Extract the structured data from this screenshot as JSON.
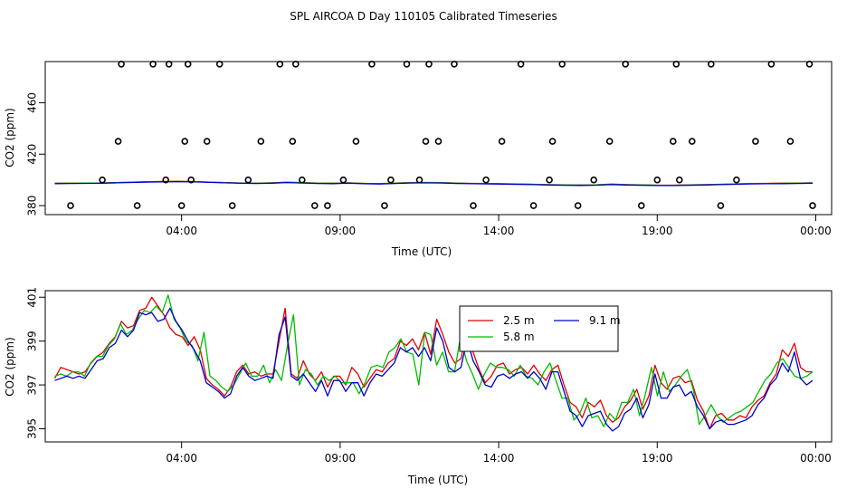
{
  "title": "SPL AIRCOA D  Day 110105  Calibrated Timeseries",
  "colors": {
    "s1": "#e00000",
    "s2": "#00bb00",
    "s3": "#0000cc",
    "marker": "#000000"
  },
  "chart_data": [
    {
      "type": "line+scatter",
      "xlabel": "Time (UTC)",
      "ylabel": "CO2 (ppm)",
      "x_unit": "hours since 00:00 UTC",
      "xlim": [
        -0.3,
        24.5
      ],
      "ylim": [
        373,
        492
      ],
      "xticks": [
        4,
        9,
        14,
        19,
        24
      ],
      "xtick_labels": [
        "04:00",
        "09:00",
        "14:00",
        "19:00",
        "00:00"
      ],
      "yticks": [
        380,
        420,
        460
      ],
      "ytick_labels": [
        "380",
        "420",
        "460"
      ],
      "series": [
        {
          "values": [
            397.4,
            397.4,
            397.5,
            397.6,
            397.9,
            398.3,
            398.6,
            398.8,
            398.9,
            398.7,
            398.3,
            397.9,
            397.6,
            397.4,
            397.7,
            398.2,
            397.9,
            397.5,
            397.4,
            397.7,
            397.3,
            397.1,
            397.5,
            397.9,
            398.0,
            397.9,
            397.5,
            397.3,
            397.2,
            397.0,
            396.8,
            396.6,
            396.3,
            396.1,
            396.0,
            396.2,
            396.7,
            396.3,
            396.1,
            395.9,
            395.9,
            396.1,
            396.3,
            396.6,
            396.9,
            397.2,
            397.3,
            397.4,
            397.5,
            397.7
          ]
        },
        {
          "values": [
            397.3,
            397.4,
            397.5,
            397.6,
            397.9,
            398.2,
            398.5,
            398.7,
            398.8,
            398.6,
            398.3,
            397.9,
            397.6,
            397.4,
            397.6,
            398.1,
            397.8,
            397.4,
            397.3,
            397.6,
            397.2,
            397.0,
            397.4,
            397.8,
            397.9,
            397.8,
            397.4,
            397.2,
            397.1,
            396.9,
            396.7,
            396.5,
            396.2,
            396.0,
            395.9,
            396.1,
            396.6,
            396.2,
            396.0,
            395.8,
            395.8,
            396.0,
            396.2,
            396.5,
            396.8,
            397.1,
            397.2,
            397.3,
            397.4,
            397.6
          ]
        },
        {
          "values": [
            397.1,
            397.2,
            397.3,
            397.4,
            397.7,
            398.0,
            398.3,
            398.5,
            398.6,
            398.4,
            398.1,
            397.7,
            397.4,
            397.2,
            397.4,
            397.9,
            397.6,
            397.2,
            397.1,
            397.4,
            397.0,
            396.8,
            397.2,
            397.6,
            397.7,
            397.6,
            397.2,
            397.0,
            396.9,
            396.7,
            396.5,
            396.3,
            396.0,
            395.8,
            395.7,
            395.9,
            396.4,
            396.0,
            395.8,
            395.6,
            395.6,
            395.8,
            396.0,
            396.3,
            396.6,
            396.9,
            397.0,
            397.1,
            397.2,
            397.4
          ]
        }
      ],
      "markers_x": [
        0.5,
        1.5,
        2.0,
        2.1,
        2.6,
        3.1,
        3.5,
        3.6,
        4.0,
        4.1,
        4.2,
        4.3,
        4.8,
        5.2,
        5.6,
        6.1,
        6.5,
        7.1,
        7.5,
        7.6,
        7.8,
        8.2,
        8.6,
        9.1,
        9.5,
        10.0,
        10.4,
        10.6,
        11.1,
        11.5,
        11.7,
        11.8,
        12.1,
        12.6,
        13.2,
        13.6,
        14.1,
        14.7,
        15.1,
        15.6,
        15.7,
        16.0,
        16.5,
        17.0,
        17.5,
        18.0,
        18.5,
        19.0,
        19.5,
        19.6,
        19.7,
        20.1,
        20.7,
        21.0,
        21.5,
        22.1,
        22.6,
        23.2,
        23.8,
        23.9
      ],
      "markers_y": [
        380,
        400,
        430,
        490,
        380,
        490,
        400,
        490,
        380,
        430,
        490,
        400,
        430,
        490,
        380,
        400,
        430,
        490,
        430,
        490,
        400,
        380,
        380,
        400,
        430,
        490,
        380,
        400,
        490,
        400,
        430,
        490,
        430,
        490,
        380,
        400,
        430,
        490,
        380,
        400,
        430,
        490,
        380,
        400,
        430,
        490,
        380,
        400,
        430,
        490,
        400,
        430,
        490,
        380,
        400,
        430,
        490,
        430,
        490,
        380
      ]
    },
    {
      "type": "line",
      "xlabel": "Time (UTC)",
      "ylabel": "CO2 (ppm)",
      "x_unit": "hours since 00:00 UTC",
      "xlim": [
        -0.3,
        24.5
      ],
      "ylim": [
        394.4,
        401.3
      ],
      "xticks": [
        4,
        9,
        14,
        19,
        24
      ],
      "xtick_labels": [
        "04:00",
        "09:00",
        "14:00",
        "19:00",
        "00:00"
      ],
      "yticks": [
        395,
        397,
        399,
        401
      ],
      "ytick_labels": [
        "395",
        "397",
        "399",
        "401"
      ],
      "legend": {
        "placement": "top-center-right"
      },
      "series": [
        {
          "name": "2.5 m",
          "values": [
            397.3,
            397.8,
            397.7,
            397.6,
            397.5,
            397.6,
            398.0,
            398.3,
            398.5,
            398.9,
            399.2,
            399.9,
            399.6,
            399.7,
            400.4,
            400.5,
            401.0,
            400.6,
            400.2,
            399.6,
            399.3,
            399.2,
            398.8,
            399.2,
            398.6,
            397.3,
            397.0,
            396.8,
            396.5,
            396.9,
            397.6,
            397.9,
            397.5,
            397.6,
            397.4,
            397.5,
            397.5,
            399.0,
            400.5,
            397.5,
            397.3,
            398.1,
            397.5,
            397.2,
            397.6,
            396.9,
            397.4,
            397.4,
            397.0,
            397.8,
            397.5,
            396.9,
            397.3,
            397.7,
            397.6,
            398.0,
            398.2,
            399.0,
            398.8,
            399.1,
            398.6,
            399.4,
            398.4,
            400.0,
            399.3,
            398.5,
            398.0,
            398.2,
            399.5,
            398.5,
            397.7,
            397.1,
            397.4,
            397.9,
            398.0,
            397.5,
            397.7,
            397.8,
            397.5,
            397.9,
            397.5,
            397.2,
            397.7,
            397.9,
            397.0,
            396.2,
            396.0,
            395.5,
            396.2,
            396.0,
            396.3,
            395.6,
            395.3,
            395.5,
            396.0,
            396.3,
            396.8,
            395.9,
            396.5,
            397.9,
            397.1,
            396.8,
            397.3,
            397.4,
            397.1,
            397.2,
            396.3,
            395.8,
            395.0,
            395.6,
            395.7,
            395.4,
            395.4,
            395.6,
            395.5,
            396.0,
            396.3,
            396.5,
            397.1,
            397.5,
            398.6,
            398.3,
            398.9,
            397.8,
            397.6,
            397.6
          ]
        },
        {
          "name": "5.8 m",
          "values": [
            397.4,
            397.5,
            397.4,
            397.6,
            397.6,
            397.4,
            398.0,
            398.3,
            398.3,
            398.8,
            399.1,
            399.8,
            399.3,
            399.5,
            400.0,
            400.4,
            400.3,
            400.6,
            400.3,
            401.1,
            400.0,
            399.6,
            399.0,
            398.8,
            398.1,
            399.4,
            397.4,
            397.2,
            396.9,
            396.7,
            397.0,
            397.5,
            398.0,
            397.4,
            397.4,
            397.9,
            397.1,
            397.7,
            397.2,
            398.8,
            400.2,
            397.0,
            397.7,
            397.5,
            397.0,
            397.4,
            397.2,
            397.4,
            397.1,
            397.1,
            397.1,
            396.6,
            397.1,
            397.8,
            397.9,
            397.8,
            398.5,
            398.7,
            399.1,
            398.5,
            398.4,
            397.0,
            399.4,
            399.3,
            397.9,
            398.5,
            397.6,
            397.6,
            399.2,
            398.1,
            397.5,
            396.8,
            397.5,
            398.0,
            397.8,
            397.8,
            397.7,
            397.4,
            397.9,
            397.4,
            397.3,
            397.0,
            397.6,
            398.0,
            397.2,
            396.4,
            396.4,
            395.4,
            395.7,
            396.4,
            395.5,
            395.6,
            395.1,
            395.7,
            395.4,
            396.2,
            396.2,
            396.8,
            395.6,
            396.6,
            397.8,
            396.5,
            397.6,
            396.7,
            397.0,
            397.4,
            397.7,
            396.8,
            395.2,
            395.6,
            396.1,
            395.6,
            395.3,
            395.5,
            395.7,
            395.8,
            396.0,
            396.2,
            396.7,
            397.2,
            397.5,
            398.0,
            398.2,
            397.8,
            397.4,
            397.3,
            397.4,
            397.6
          ]
        },
        {
          "name": "9.1 m",
          "values": [
            397.2,
            397.3,
            397.4,
            397.3,
            397.4,
            397.3,
            397.7,
            398.1,
            398.2,
            398.7,
            398.9,
            399.5,
            399.2,
            399.5,
            400.3,
            400.2,
            400.3,
            399.9,
            400.0,
            400.5,
            399.9,
            399.5,
            399.0,
            398.6,
            398.1,
            397.1,
            396.9,
            396.7,
            396.4,
            396.6,
            397.4,
            397.8,
            397.4,
            397.2,
            397.3,
            397.4,
            397.3,
            399.3,
            400.1,
            397.4,
            397.2,
            397.5,
            397.1,
            396.7,
            397.2,
            396.5,
            397.2,
            397.2,
            396.7,
            397.1,
            397.1,
            396.5,
            397.1,
            397.5,
            397.4,
            397.7,
            398.0,
            398.7,
            398.5,
            398.7,
            398.3,
            398.7,
            398.1,
            399.6,
            399.0,
            397.8,
            397.6,
            397.8,
            399.1,
            398.1,
            397.6,
            397.0,
            396.9,
            397.4,
            397.5,
            397.3,
            397.5,
            397.6,
            397.3,
            397.6,
            397.3,
            396.8,
            397.6,
            397.6,
            396.7,
            395.8,
            395.6,
            395.1,
            395.6,
            395.7,
            395.8,
            395.2,
            394.9,
            395.1,
            395.7,
            395.9,
            396.4,
            395.5,
            396.1,
            397.5,
            396.4,
            396.4,
            396.9,
            397.0,
            396.5,
            396.7,
            396.0,
            395.6,
            395.0,
            395.3,
            395.4,
            395.2,
            395.2,
            395.3,
            395.4,
            395.6,
            396.1,
            396.4,
            397.0,
            397.3,
            398.0,
            397.6,
            398.5,
            397.3,
            397.0,
            397.2
          ]
        }
      ]
    }
  ]
}
